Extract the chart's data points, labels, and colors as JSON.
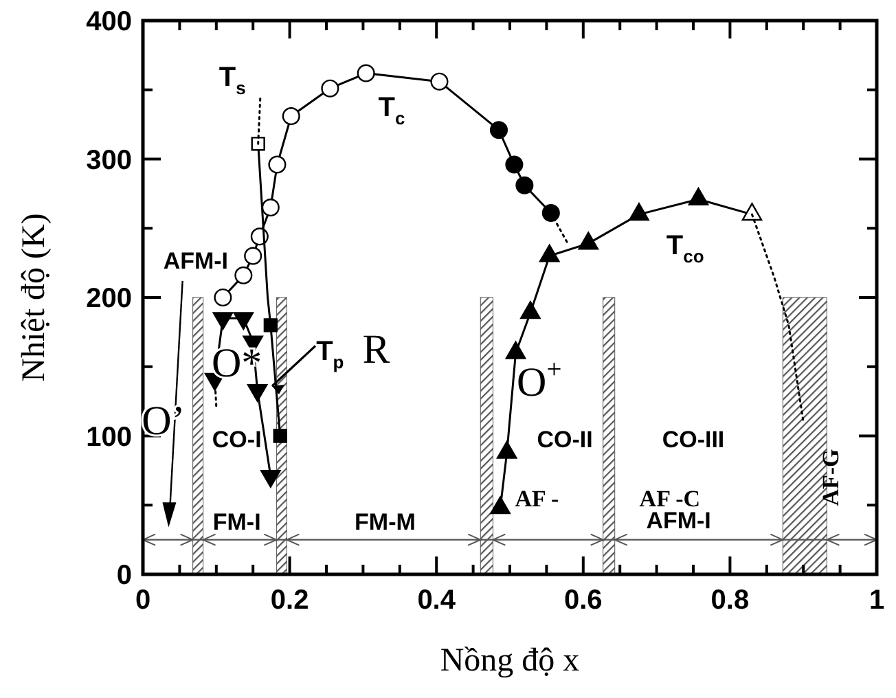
{
  "chart_data": {
    "type": "line",
    "xlabel": "Nồng độ x",
    "ylabel": "Nhiệt độ (K)",
    "xlim": [
      0,
      1
    ],
    "ylim": [
      0,
      400
    ],
    "xticks": [
      0,
      {
        "value": 0.05,
        "label": null
      },
      0.2,
      {
        "value": 0.1,
        "label": null
      },
      {
        "value": 0.15,
        "label": null
      },
      {
        "value": 0.25,
        "label": null
      },
      {
        "value": 0.3,
        "label": null
      },
      {
        "value": 0.35,
        "label": null
      },
      0.4,
      {
        "value": 0.45,
        "label": null
      },
      {
        "value": 0.5,
        "label": null
      },
      {
        "value": 0.55,
        "label": null
      },
      0.6,
      {
        "value": 0.65,
        "label": null
      },
      {
        "value": 0.7,
        "label": null
      },
      {
        "value": 0.75,
        "label": null
      },
      0.8,
      {
        "value": 0.85,
        "label": null
      },
      {
        "value": 0.9,
        "label": null
      },
      {
        "value": 0.95,
        "label": null
      },
      1
    ],
    "yticks": [
      0,
      {
        "value": 50,
        "label": null
      },
      100,
      {
        "value": 150,
        "label": null
      },
      200,
      {
        "value": 250,
        "label": null
      },
      300,
      {
        "value": 350,
        "label": null
      },
      400
    ],
    "grid": false,
    "series": [
      {
        "type": "line",
        "color": "#000000",
        "marker": "circle",
        "line_style": "solid",
        "x": [
          0.109,
          0.137,
          0.15,
          0.159,
          0.174,
          0.183,
          0.202,
          0.255,
          0.304,
          0.404,
          0.485,
          0.506,
          0.52,
          0.556
        ],
        "values": [
          200,
          216,
          230,
          244,
          265,
          296,
          331,
          351,
          362,
          356,
          321,
          296,
          281,
          261
        ],
        "colors": [
          "#ffffff",
          "#ffffff",
          "#ffffff",
          "#ffffff",
          "#ffffff",
          "#ffffff",
          "#ffffff",
          "#ffffff",
          "#ffffff",
          "#ffffff",
          "#000000",
          "#000000",
          "#000000",
          "#000000"
        ]
      },
      {
        "type": "line",
        "color": "#000000",
        "marker": "triangle",
        "line_style": "solid",
        "x": [
          0.487,
          0.496,
          0.508,
          0.528,
          0.554,
          0.607,
          0.676,
          0.757,
          0.83
        ],
        "values": [
          48,
          88,
          160,
          189,
          230,
          239,
          260,
          271,
          260
        ],
        "colors": [
          "#000000",
          "#000000",
          "#000000",
          "#000000",
          "#000000",
          "#000000",
          "#000000",
          "#000000",
          "#ffffff"
        ]
      },
      {
        "type": "line",
        "color": "#000000",
        "marker": "square",
        "line_style": "solid",
        "x": [
          0.157,
          0.17,
          0.174,
          0.187
        ],
        "values": [
          311,
          200,
          180,
          100
        ],
        "colors": [
          "#ffffff",
          null,
          "#000000",
          "#000000"
        ]
      },
      {
        "type": "line",
        "color": "#000000",
        "marker": "triangle-down",
        "line_style": "solid",
        "x": [
          0.098,
          0.109,
          0.137,
          0.15,
          0.156,
          0.174
        ],
        "values": [
          141,
          185,
          185,
          168,
          133,
          71
        ],
        "colors": [
          "#000000",
          "#000000",
          "#000000",
          "#000000",
          "#000000",
          "#000000"
        ]
      },
      {
        "type": "line",
        "color": "#000000",
        "marker": "none",
        "line_style": "dotted",
        "x": [
          0.157,
          0.16
        ],
        "values": [
          311,
          345
        ]
      },
      {
        "type": "line",
        "color": "#000000",
        "marker": "none",
        "line_style": "dotted",
        "x": [
          0.098,
          0.1
        ],
        "values": [
          141,
          121
        ]
      },
      {
        "type": "line",
        "color": "#000000",
        "marker": "none",
        "line_style": "dotted",
        "x": [
          0.556,
          0.58
        ],
        "values": [
          261,
          238
        ]
      },
      {
        "type": "line",
        "color": "#000000",
        "marker": "none",
        "line_style": "dotted",
        "x": [
          0.83,
          0.86,
          0.88,
          0.9
        ],
        "values": [
          260,
          215,
          180,
          110
        ]
      }
    ],
    "bands": [
      {
        "axis": "x",
        "from": 0.068,
        "to": 0.082,
        "color": "#555555"
      },
      {
        "axis": "x",
        "from": 0.182,
        "to": 0.196,
        "color": "#555555"
      },
      {
        "axis": "x",
        "from": 0.46,
        "to": 0.477,
        "color": "#555555"
      },
      {
        "axis": "x",
        "from": 0.627,
        "to": 0.643,
        "color": "#555555"
      },
      {
        "axis": "x",
        "from": 0.872,
        "to": 0.932,
        "color": "#555555"
      }
    ],
    "ref_lines": [
      {
        "axis": "y",
        "value": 25,
        "color": "#555555"
      }
    ],
    "annotations": [
      "T$_{s}$",
      "T$_{c}$",
      "T$_{co}$",
      "T$_{p}$",
      "R",
      "O*",
      "O’",
      "O$^{+}$",
      "AFM-I",
      "CO-I",
      "CO-II",
      "CO-III",
      "AF   -",
      "AF -C",
      "AFM-I",
      "AF-G",
      "FM-I",
      "FM-M"
    ]
  }
}
